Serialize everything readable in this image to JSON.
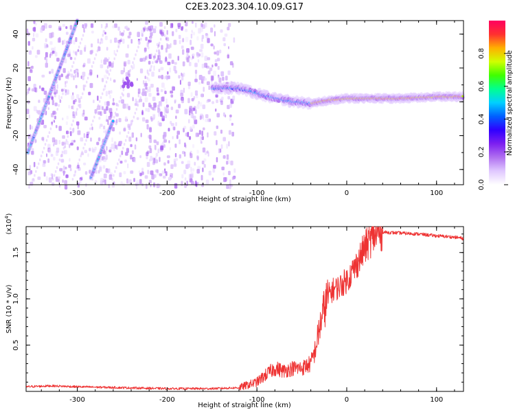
{
  "figure": {
    "title": "C2E3.2023.304.10.09.G17"
  },
  "chart_data": [
    {
      "type": "heatmap",
      "xlabel": "Height of straight line (km)",
      "ylabel": "Frequency (Hz)",
      "xlim": [
        -357,
        130
      ],
      "ylim": [
        -49,
        48
      ],
      "xticks": [
        -300,
        -200,
        -100,
        0,
        100
      ],
      "yticks": [
        -40,
        -20,
        0,
        20,
        40
      ],
      "colorbar": {
        "label": "Normalized spectral amplitude",
        "range": [
          0,
          1
        ],
        "ticks": [
          0.0,
          0.2,
          0.4,
          0.6,
          0.8
        ],
        "colormap": [
          "#ffffff",
          "#e0c8ff",
          "#b070f0",
          "#7d1ff0",
          "#2f00ff",
          "#0060ff",
          "#00d0ff",
          "#00ff90",
          "#40ff00",
          "#d0ff00",
          "#ffb000",
          "#ff3030",
          "#ff0060"
        ]
      },
      "features": [
        {
          "name": "main-trace",
          "x": [
            -150,
            -120,
            -100,
            -80,
            -60,
            -40,
            -20,
            0,
            30,
            60,
            100,
            130
          ],
          "y": [
            8,
            8,
            5,
            2,
            0,
            -1,
            1,
            2,
            2,
            2,
            3,
            3
          ]
        },
        {
          "name": "diagonal-streak-1",
          "x": [
            -355,
            -300
          ],
          "y": [
            -30,
            48
          ]
        },
        {
          "name": "diagonal-streak-2",
          "x": [
            -285,
            -260
          ],
          "y": [
            -45,
            -11
          ]
        }
      ]
    },
    {
      "type": "line",
      "xlabel": "Height of straight line (km)",
      "ylabel": "SNR (10 * v/v)",
      "multiplier": "(x10",
      "multiplier_exp": "4",
      "multiplier_close": ")",
      "xlim": [
        -357,
        130
      ],
      "ylim": [
        0,
        1.78
      ],
      "xticks": [
        -300,
        -200,
        -100,
        0,
        100
      ],
      "yticks": [
        0.5,
        1.0,
        1.5
      ],
      "color": "#ee3333",
      "series": [
        {
          "x": [
            -357,
            -330,
            -300,
            -250,
            -200,
            -150,
            -120,
            -100,
            -90,
            -80,
            -70,
            -60,
            -50,
            -40,
            -35,
            -30,
            -25,
            -20,
            -15,
            -10,
            0,
            10,
            20,
            30,
            40,
            60,
            80,
            100,
            115,
            125,
            130
          ],
          "y": [
            0.05,
            0.06,
            0.05,
            0.04,
            0.03,
            0.03,
            0.04,
            0.1,
            0.18,
            0.25,
            0.22,
            0.25,
            0.25,
            0.3,
            0.45,
            0.7,
            0.9,
            1.05,
            1.1,
            1.12,
            1.2,
            1.35,
            1.55,
            1.68,
            1.72,
            1.71,
            1.7,
            1.68,
            1.67,
            1.66,
            1.65
          ]
        }
      ]
    }
  ]
}
